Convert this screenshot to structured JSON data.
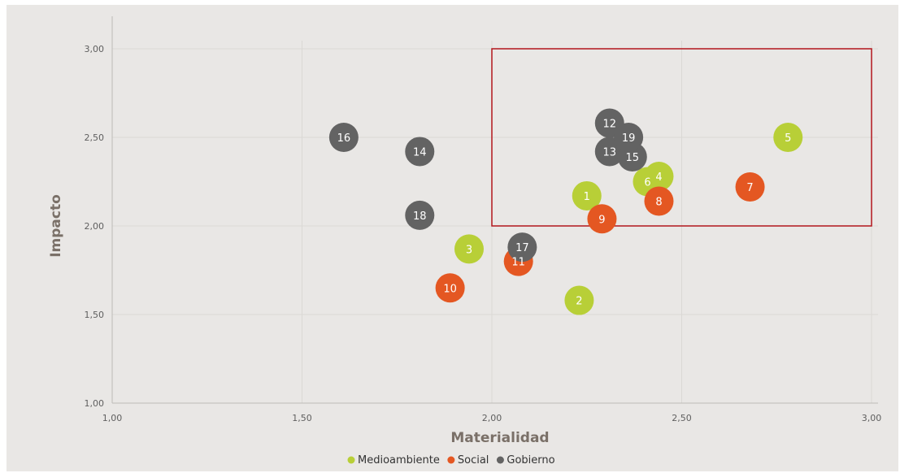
{
  "chart_data": {
    "type": "scatter",
    "title": "",
    "xlabel": "Materialidad",
    "ylabel": "Impacto",
    "xlim": [
      1.0,
      3.0
    ],
    "ylim": [
      1.0,
      3.0
    ],
    "x_ticks": [
      "1,00",
      "1,50",
      "2,00",
      "2,50",
      "3,00"
    ],
    "y_ticks": [
      "1,00",
      "1,50",
      "2,00",
      "2,50",
      "3,00"
    ],
    "grid": true,
    "legend_position": "bottom",
    "highlight_box": {
      "x": [
        2.0,
        3.0
      ],
      "y": [
        2.0,
        3.0
      ],
      "color": "#b3161c"
    },
    "series": [
      {
        "name": "Medioambiente",
        "color": "#b8cf37",
        "points": [
          {
            "label": "1",
            "x": 2.25,
            "y": 2.17
          },
          {
            "label": "2",
            "x": 2.23,
            "y": 1.58
          },
          {
            "label": "3",
            "x": 1.94,
            "y": 1.87
          },
          {
            "label": "4",
            "x": 2.44,
            "y": 2.28
          },
          {
            "label": "5",
            "x": 2.78,
            "y": 2.5
          },
          {
            "label": "6",
            "x": 2.41,
            "y": 2.25
          }
        ]
      },
      {
        "name": "Social",
        "color": "#e45722",
        "points": [
          {
            "label": "7",
            "x": 2.68,
            "y": 2.22
          },
          {
            "label": "8",
            "x": 2.44,
            "y": 2.14
          },
          {
            "label": "9",
            "x": 2.29,
            "y": 2.04
          },
          {
            "label": "10",
            "x": 1.89,
            "y": 1.65
          },
          {
            "label": "11",
            "x": 2.07,
            "y": 1.8
          }
        ]
      },
      {
        "name": "Gobierno",
        "color": "#636363",
        "points": [
          {
            "label": "12",
            "x": 2.31,
            "y": 2.58
          },
          {
            "label": "13",
            "x": 2.31,
            "y": 2.42
          },
          {
            "label": "14",
            "x": 1.81,
            "y": 2.42
          },
          {
            "label": "15",
            "x": 2.37,
            "y": 2.39
          },
          {
            "label": "16",
            "x": 1.61,
            "y": 2.5
          },
          {
            "label": "17",
            "x": 2.08,
            "y": 1.88
          },
          {
            "label": "18",
            "x": 1.81,
            "y": 2.06
          },
          {
            "label": "19",
            "x": 2.36,
            "y": 2.5
          }
        ]
      }
    ]
  }
}
